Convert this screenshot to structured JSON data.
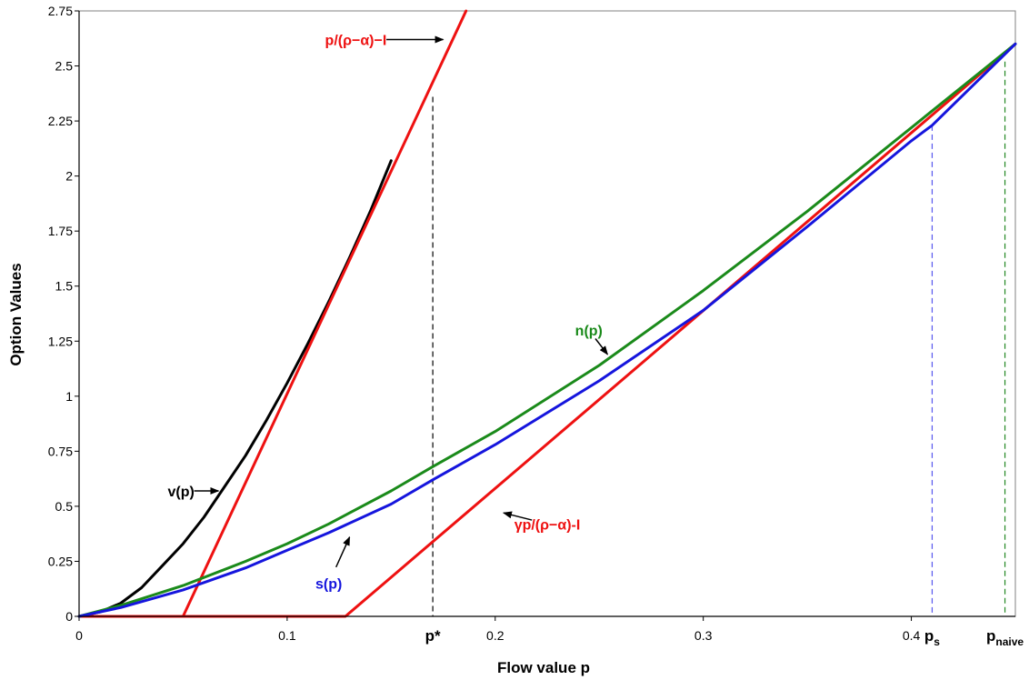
{
  "chart_data": {
    "type": "line",
    "xlabel": "Flow value p",
    "ylabel": "Option Values",
    "xlim": [
      0,
      0.45
    ],
    "ylim": [
      0,
      2.75
    ],
    "x_ticks": [
      "0",
      "0.1",
      "0.2",
      "0.3",
      "0.4"
    ],
    "y_ticks": [
      "0",
      "0.25",
      "0.5",
      "0.75",
      "1",
      "1.25",
      "1.5",
      "1.75",
      "2",
      "2.25",
      "2.5",
      "2.75"
    ],
    "grid": false,
    "series": [
      {
        "name": "v(p)",
        "color": "#000000",
        "x": [
          0,
          0.01,
          0.02,
          0.03,
          0.04,
          0.05,
          0.06,
          0.07,
          0.08,
          0.09,
          0.1,
          0.11,
          0.12,
          0.13,
          0.14,
          0.15
        ],
        "y": [
          0,
          0.02,
          0.06,
          0.13,
          0.23,
          0.33,
          0.45,
          0.59,
          0.73,
          0.89,
          1.06,
          1.24,
          1.43,
          1.63,
          1.84,
          2.07
        ]
      },
      {
        "name": "p/(ρ−α)−I",
        "color": "#ee1111",
        "x": [
          0.05,
          0.186
        ],
        "y": [
          0,
          2.75
        ]
      },
      {
        "name": "γp/(ρ−α)-I",
        "color": "#ee1111",
        "x": [
          0,
          0.128,
          0.45
        ],
        "y": [
          0,
          0,
          2.6
        ]
      },
      {
        "name": "n(p)",
        "color": "#1a8a1a",
        "x": [
          0,
          0.02,
          0.05,
          0.08,
          0.1,
          0.12,
          0.15,
          0.17,
          0.2,
          0.25,
          0.3,
          0.35,
          0.4,
          0.45
        ],
        "y": [
          0,
          0.05,
          0.14,
          0.25,
          0.33,
          0.42,
          0.57,
          0.68,
          0.84,
          1.14,
          1.48,
          1.84,
          2.22,
          2.6
        ]
      },
      {
        "name": "s(p)",
        "color": "#1515dd",
        "x": [
          0,
          0.02,
          0.05,
          0.08,
          0.1,
          0.12,
          0.15,
          0.17,
          0.2,
          0.25,
          0.3,
          0.35,
          0.4,
          0.41,
          0.45
        ],
        "y": [
          0,
          0.04,
          0.12,
          0.22,
          0.3,
          0.38,
          0.51,
          0.62,
          0.78,
          1.07,
          1.39,
          1.77,
          2.16,
          2.23,
          2.6
        ]
      }
    ],
    "reference_lines": [
      {
        "label": "p*",
        "sub": "",
        "x": 0.17,
        "y_top": 2.36,
        "color": "#000000"
      },
      {
        "label": "p",
        "sub": "s",
        "x": 0.41,
        "y_top": 2.23,
        "color": "#5555ee"
      },
      {
        "label": "p",
        "sub": "naive",
        "x": 0.445,
        "y_top": 2.52,
        "color": "#228822"
      }
    ],
    "annotations": [
      {
        "text": "p/(ρ−α)−I",
        "color": "#ee1111",
        "x": 0.133,
        "y": 2.62,
        "arrow_to": [
          0.175,
          2.62
        ]
      },
      {
        "text": "v(p)",
        "color": "#000000",
        "x": 0.049,
        "y": 0.57,
        "arrow_to": [
          0.067,
          0.57
        ]
      },
      {
        "text": "n(p)",
        "color": "#1a8a1a",
        "x": 0.245,
        "y": 1.3,
        "arrow_to": [
          0.254,
          1.19
        ]
      },
      {
        "text": "s(p)",
        "color": "#1515dd",
        "x": 0.12,
        "y": 0.15,
        "arrow_to": [
          0.13,
          0.36
        ]
      },
      {
        "text": "γp/(ρ−α)-I",
        "color": "#ee1111",
        "x": 0.225,
        "y": 0.42,
        "arrow_to": [
          0.204,
          0.47
        ]
      }
    ]
  }
}
